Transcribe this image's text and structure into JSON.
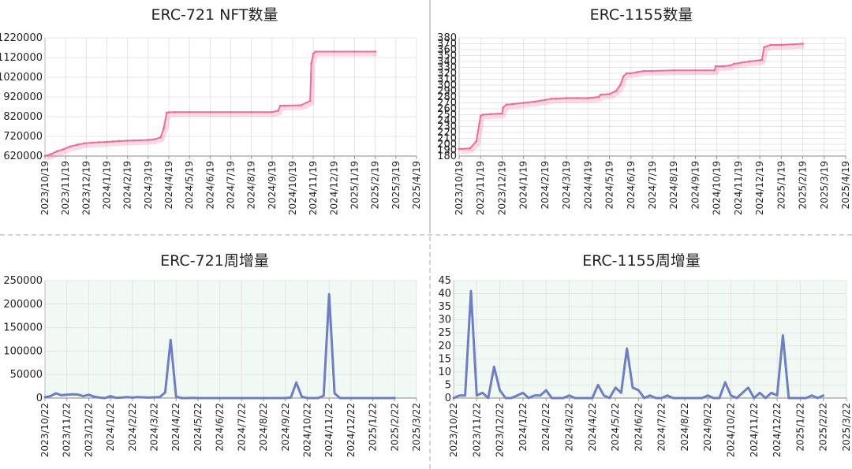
{
  "charts": [
    {
      "title": "ERC-721 NFT数量"
    },
    {
      "title": "ERC-1155数量"
    },
    {
      "title": "ERC-721周增量"
    },
    {
      "title": "ERC-1155周增量"
    }
  ],
  "chart_data": [
    {
      "type": "line",
      "title": "ERC-721 NFT数量",
      "ylim": [
        620000,
        1220000
      ],
      "yticks": [
        "620000",
        "720000",
        "820000",
        "920000",
        "1020000",
        "1120000",
        "1220000"
      ],
      "xticks": [
        "2023/10/19",
        "2023/11/19",
        "2023/12/19",
        "2024/1/19",
        "2024/2/19",
        "2024/3/19",
        "2024/4/19",
        "2024/5/19",
        "2024/6/19",
        "2024/7/19",
        "2024/8/19",
        "2024/9/19",
        "2024/10/19",
        "2024/11/19",
        "2024/12/19",
        "2025/1/19",
        "2025/2/19",
        "2025/3/19",
        "2025/4/19"
      ],
      "color": "#f06b9a",
      "grid": true,
      "series": [
        {
          "x": [
            0,
            0.3,
            0.6,
            0.9,
            1.2,
            1.6,
            1.9,
            2.3,
            2.6,
            3.0,
            3.3,
            3.6,
            4.0,
            4.3,
            4.6,
            5.0,
            5.3,
            5.6,
            5.75,
            5.9,
            6.0,
            6.3,
            7,
            8,
            9,
            10,
            11,
            11.3,
            11.4,
            11.6,
            12.4,
            12.85,
            12.9,
            13.0,
            13.1,
            14,
            15,
            16
          ],
          "y": [
            620000,
            630000,
            645000,
            655000,
            668000,
            678000,
            685000,
            688000,
            690000,
            692000,
            694000,
            696000,
            698000,
            699000,
            700000,
            702000,
            705000,
            715000,
            760000,
            840000,
            842000,
            843000,
            843000,
            843000,
            843000,
            843000,
            843000,
            850000,
            875000,
            876000,
            878000,
            900000,
            1090000,
            1140000,
            1150000,
            1150000,
            1150000,
            1150000
          ]
        }
      ]
    },
    {
      "type": "line",
      "title": "ERC-1155数量",
      "ylim": [
        180,
        380
      ],
      "yticks": [
        "180",
        "190",
        "200",
        "210",
        "220",
        "230",
        "240",
        "250",
        "260",
        "270",
        "280",
        "290",
        "300",
        "310",
        "320",
        "330",
        "340",
        "350",
        "360",
        "370",
        "380"
      ],
      "xticks": [
        "2023/10/19",
        "2023/11/19",
        "2023/12/19",
        "2024/1/19",
        "2024/2/19",
        "2024/3/19",
        "2024/4/19",
        "2024/5/19",
        "2024/6/19",
        "2024/7/19",
        "2024/8/19",
        "2024/9/19",
        "2024/10/19",
        "2024/11/19",
        "2024/12/19",
        "2025/1/19",
        "2025/2/19",
        "2025/3/19",
        "2025/4/19"
      ],
      "color": "#f06b9a",
      "grid": true,
      "series": [
        {
          "x": [
            0,
            0.5,
            0.8,
            1.0,
            1.1,
            1.5,
            2.0,
            2.05,
            2.2,
            2.5,
            3.0,
            3.5,
            4.0,
            4.3,
            4.5,
            5.0,
            5.5,
            6.0,
            6.5,
            6.6,
            7.0,
            7.3,
            7.5,
            7.65,
            7.8,
            8.0,
            8.3,
            8.6,
            9,
            10,
            11,
            11.9,
            11.95,
            12.3,
            12.6,
            12.8,
            13.5,
            14.0,
            14.1,
            14.2,
            14.5,
            15,
            16
          ],
          "y": [
            192,
            193,
            205,
            248,
            250,
            251,
            252,
            262,
            267,
            268,
            270,
            272,
            275,
            277,
            277,
            278,
            278,
            278,
            280,
            284,
            285,
            290,
            300,
            315,
            320,
            320,
            322,
            324,
            324,
            325,
            325,
            325,
            332,
            332,
            333,
            336,
            340,
            342,
            343,
            364,
            368,
            368,
            370
          ]
        }
      ]
    },
    {
      "type": "line",
      "title": "ERC-721周增量",
      "ylim": [
        0,
        250000
      ],
      "yticks": [
        "0",
        "50000",
        "100000",
        "150000",
        "200000",
        "250000"
      ],
      "xticks": [
        "2023/10/22",
        "2023/11/22",
        "2023/12/22",
        "2024/1/22",
        "2024/2/22",
        "2024/3/22",
        "2024/4/22",
        "2024/5/22",
        "2024/6/22",
        "2024/7/22",
        "2024/8/22",
        "2024/9/22",
        "2024/10/22",
        "2024/11/22",
        "2024/12/22",
        "2025/1/22",
        "2025/2/22",
        "2025/3/22"
      ],
      "color": "#6d7fc2",
      "grid": true,
      "series": [
        {
          "x": [
            0,
            0.25,
            0.5,
            0.75,
            1.0,
            1.25,
            1.5,
            1.75,
            2.0,
            2.25,
            2.5,
            2.75,
            3.0,
            3.25,
            3.5,
            3.75,
            4.0,
            4.25,
            4.5,
            4.75,
            5.0,
            5.25,
            5.5,
            5.75,
            6.0,
            6.25,
            6.5,
            6.75,
            7,
            7.5,
            8,
            8.5,
            9,
            9.5,
            10,
            10.5,
            11,
            11.25,
            11.5,
            11.75,
            12,
            12.25,
            12.5,
            12.75,
            13,
            13.25,
            13.5,
            14,
            14.5,
            15,
            15.5,
            16
          ],
          "y": [
            2000,
            4000,
            10000,
            6000,
            7000,
            8000,
            7500,
            4000,
            7000,
            3000,
            1000,
            0,
            4000,
            500,
            1000,
            2000,
            1000,
            2000,
            1500,
            1000,
            1500,
            2000,
            12000,
            124000,
            3000,
            0,
            0,
            500,
            0,
            0,
            0,
            0,
            0,
            0,
            0,
            0,
            0,
            1000,
            33000,
            3000,
            0,
            0,
            0,
            5000,
            221000,
            10000,
            0,
            0,
            0,
            0,
            0,
            0
          ]
        }
      ]
    },
    {
      "type": "line",
      "title": "ERC-1155周增量",
      "ylim": [
        0,
        45
      ],
      "yticks": [
        "0",
        "5",
        "10",
        "15",
        "20",
        "25",
        "30",
        "35",
        "40",
        "45"
      ],
      "xticks": [
        "2023/10/22",
        "2023/11/22",
        "2023/12/22",
        "2024/1/22",
        "2024/2/22",
        "2024/3/22",
        "2024/4/22",
        "2024/5/22",
        "2024/6/22",
        "2024/7/22",
        "2024/8/22",
        "2024/9/22",
        "2024/10/22",
        "2024/11/22",
        "2024/12/22",
        "2025/1/22",
        "2025/2/22",
        "2025/3/22"
      ],
      "color": "#6d7fc2",
      "grid": true,
      "series": [
        {
          "x": [
            0,
            0.25,
            0.5,
            0.75,
            1.0,
            1.25,
            1.5,
            1.75,
            2.0,
            2.25,
            2.5,
            2.75,
            3.0,
            3.25,
            3.5,
            3.75,
            4.0,
            4.25,
            4.5,
            4.75,
            5.0,
            5.25,
            5.5,
            5.75,
            6.0,
            6.25,
            6.5,
            6.75,
            7.0,
            7.25,
            7.5,
            7.75,
            8.0,
            8.25,
            8.5,
            8.75,
            9.0,
            9.25,
            9.5,
            9.75,
            10.0,
            10.25,
            10.5,
            10.75,
            11.0,
            11.25,
            11.5,
            11.75,
            12.0,
            12.25,
            12.5,
            12.75,
            13.0,
            13.25,
            13.5,
            13.75,
            14.0,
            14.25,
            14.5,
            14.75,
            15.0,
            15.25,
            15.5,
            15.75,
            16.0
          ],
          "y": [
            0,
            1,
            1,
            41,
            1,
            2,
            0,
            12,
            3,
            0,
            0,
            1,
            2,
            0,
            1,
            1,
            3,
            0,
            0,
            0,
            1,
            0,
            0,
            0,
            0,
            5,
            1,
            0,
            4,
            2,
            19,
            4,
            3,
            0,
            1,
            0,
            0,
            1,
            0,
            0,
            0,
            0,
            0,
            0,
            1,
            0,
            0,
            6,
            1,
            0,
            2,
            4,
            0,
            2,
            0,
            2,
            1,
            24,
            0,
            0,
            0,
            0,
            1,
            0,
            1
          ]
        }
      ]
    }
  ]
}
